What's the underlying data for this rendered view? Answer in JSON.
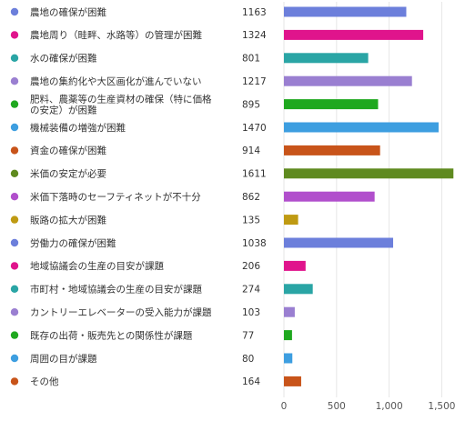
{
  "chart_data": {
    "type": "bar",
    "orientation": "horizontal",
    "categories": [
      [
        "農地の確保が困難"
      ],
      [
        "農地周り（畦畔、水路等）の管理が困難"
      ],
      [
        "水の確保が困難"
      ],
      [
        "農地の集約化や大区画化が進んでいない"
      ],
      [
        "肥料、農薬等の生産資材の確保（特に価格",
        "の安定）が困難"
      ],
      [
        "機械装備の増強が困難"
      ],
      [
        "資金の確保が困難"
      ],
      [
        "米価の安定が必要"
      ],
      [
        "米価下落時のセーフティネットが不十分"
      ],
      [
        "販路の拡大が困難"
      ],
      [
        "労働力の確保が困難"
      ],
      [
        "地域協議会の生産の目安が課題"
      ],
      [
        "市町村・地域協議会の生産の目安が課題"
      ],
      [
        "カントリーエレベーターの受入能力が課題"
      ],
      [
        "既存の出荷・販売先との関係性が課題"
      ],
      [
        "周囲の目が課題"
      ],
      [
        "その他"
      ]
    ],
    "values": [
      1163,
      1324,
      801,
      1217,
      895,
      1470,
      914,
      1611,
      862,
      135,
      1038,
      206,
      274,
      103,
      77,
      80,
      164
    ],
    "value_labels": [
      "1163",
      "1324",
      "801",
      "1217",
      "895",
      "1470",
      "914",
      "1611",
      "862",
      "135",
      "1038",
      "206",
      "274",
      "103",
      "77",
      "80",
      "164"
    ],
    "colors": [
      "#6c7fdb",
      "#e0148c",
      "#2aa5a5",
      "#9a7fd1",
      "#1fa81f",
      "#3d9ee0",
      "#c8541a",
      "#5f8a1f",
      "#b14fcc",
      "#bf9a12",
      "#6c7fdb",
      "#e0148c",
      "#2aa5a5",
      "#9a7fd1",
      "#1fa81f",
      "#3d9ee0",
      "#c8541a"
    ],
    "xlim": [
      0,
      1600
    ],
    "xticks": [
      0,
      500,
      1000,
      1500
    ],
    "xtick_labels": [
      "0",
      "500",
      "1,000",
      "1,500"
    ],
    "grid": true,
    "title": "",
    "xlabel": "",
    "ylabel": ""
  }
}
